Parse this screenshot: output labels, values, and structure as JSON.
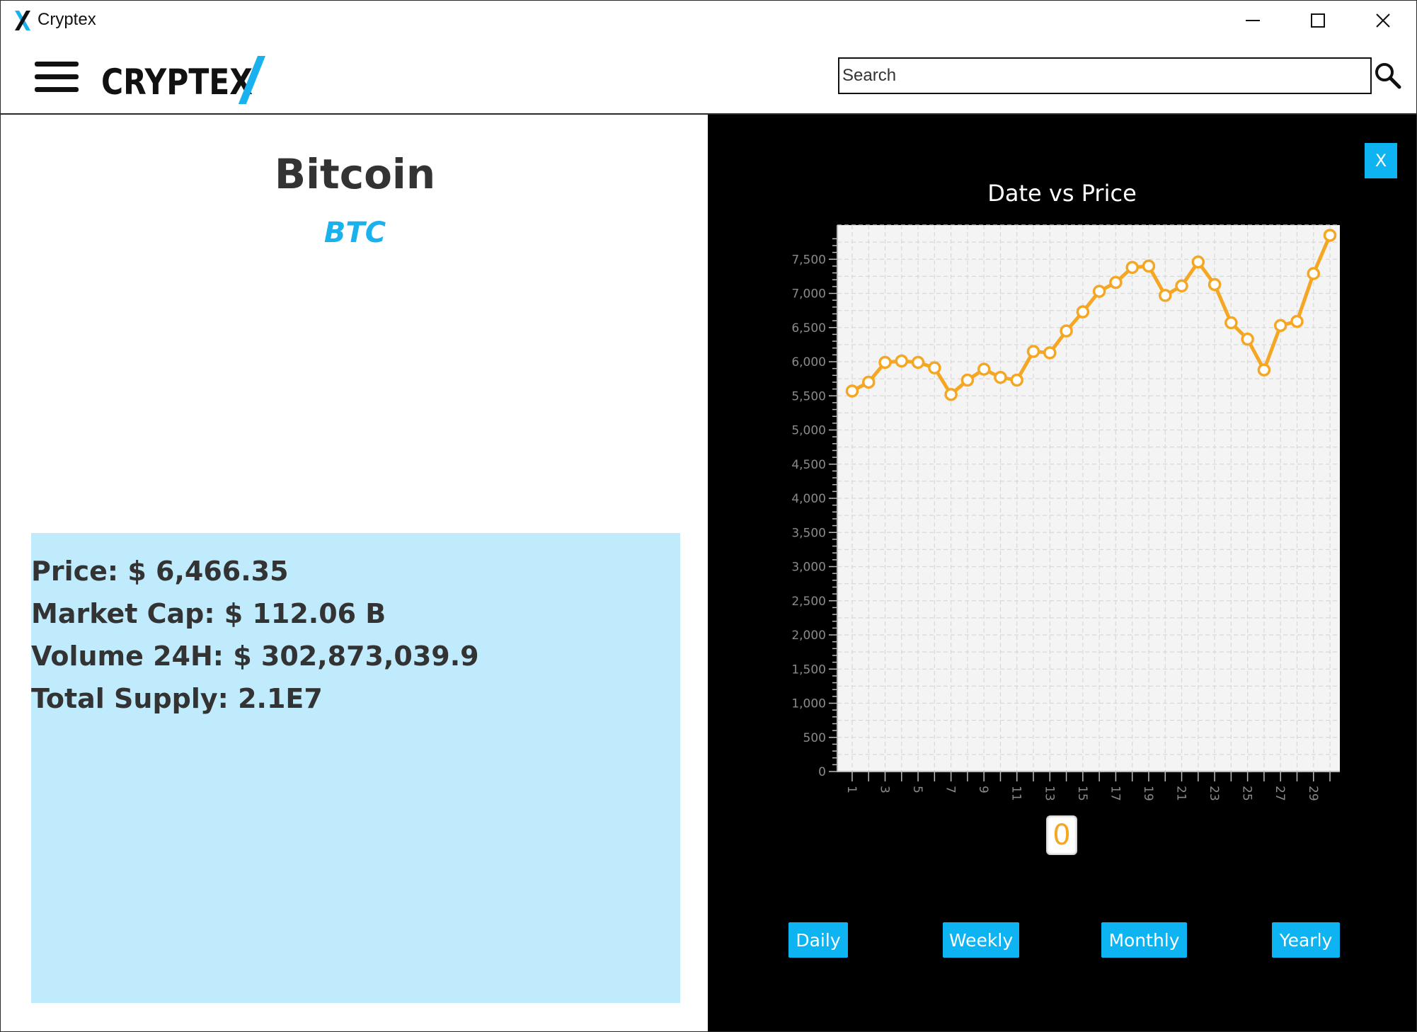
{
  "window": {
    "title": "Cryptex",
    "buttons": {
      "minimize": "—",
      "maximize": "☐",
      "close": "✕"
    }
  },
  "header": {
    "brand": "CRYPTEX",
    "search": {
      "placeholder": "Search",
      "value": ""
    }
  },
  "coin": {
    "name": "Bitcoin",
    "symbol": "BTC",
    "price_line": "Price: $ 6,466.35",
    "market_cap_line": "Market Cap: $ 112.06 B",
    "volume_line": "Volume 24H: $ 302,873,039.9",
    "supply_line": "Total Supply: 2.1E7"
  },
  "chart_panel": {
    "close_label": "X",
    "selected_value": "0",
    "buttons": {
      "daily": "Daily",
      "weekly": "Weekly",
      "monthly": "Monthly",
      "yearly": "Yearly"
    }
  },
  "colors": {
    "accent": "#0eb3f1",
    "line": "#f5a623",
    "info_box": "#c0ebfc",
    "chart_bg": "#f4f4f4"
  },
  "chart_data": {
    "type": "line",
    "title": "Date vs Price",
    "xlabel": "",
    "ylabel": "",
    "x": [
      1,
      2,
      3,
      4,
      5,
      6,
      7,
      8,
      9,
      10,
      11,
      12,
      13,
      14,
      15,
      16,
      17,
      18,
      19,
      20,
      21,
      22,
      23,
      24,
      25,
      26,
      27,
      28,
      29,
      30
    ],
    "x_tick_labels": [
      "1",
      "3",
      "5",
      "7",
      "9",
      "11",
      "13",
      "15",
      "17",
      "19",
      "21",
      "23",
      "25",
      "27",
      "29"
    ],
    "series": [
      {
        "values": [
          5570,
          5700,
          5990,
          6010,
          5990,
          5910,
          5520,
          5730,
          5890,
          5770,
          5730,
          6150,
          6130,
          6450,
          6730,
          7030,
          7160,
          7380,
          7400,
          6970,
          7110,
          7460,
          7130,
          6570,
          6330,
          5880,
          6530,
          6590,
          7290,
          7850
        ]
      }
    ],
    "ylim": [
      0,
      8000
    ],
    "y_ticks": [
      0,
      500,
      1000,
      1500,
      2000,
      2500,
      3000,
      3500,
      4000,
      4500,
      5000,
      5500,
      6000,
      6500,
      7000,
      7500
    ],
    "grid": true,
    "legend": "none"
  }
}
